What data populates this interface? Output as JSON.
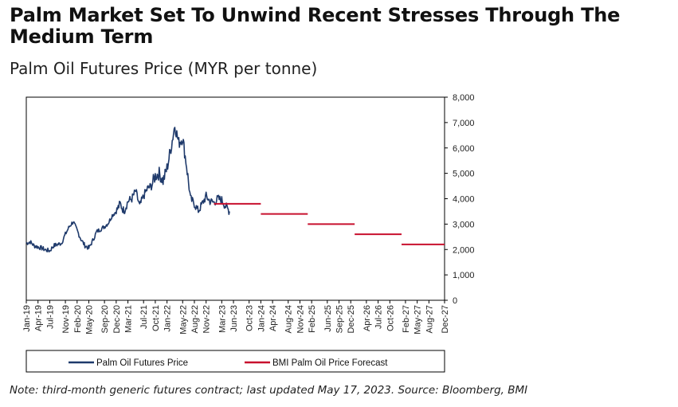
{
  "title": "Palm Market Set To Unwind Recent Stresses Through The Medium Term",
  "subtitle": "Palm Oil Futures Price (MYR per tonne)",
  "note": "Note: third-month generic futures contract; last updated May 17, 2023. Source: Bloomberg, BMI",
  "colors": {
    "futures": "#1f3a6b",
    "forecast": "#c8102e"
  },
  "chart_data": {
    "type": "line",
    "title": "Palm Oil Futures Price (MYR per tonne)",
    "xlabel": "",
    "ylabel": "MYR per tonne",
    "ylim": [
      0,
      8000
    ],
    "y_ticks": [
      "0",
      "1,000",
      "2,000",
      "3,000",
      "4,000",
      "5,000",
      "6,000",
      "7,000",
      "8,000"
    ],
    "x_start": "Jan-19",
    "x_end": "Dec-27",
    "x_ticks": [
      "Jan-19",
      "Apr-19",
      "Jul-19",
      "Nov-19",
      "Feb-20",
      "May-20",
      "Sep-20",
      "Dec-20",
      "Mar-21",
      "Jul-21",
      "Oct-21",
      "Jan-22",
      "May-22",
      "Aug-22",
      "Nov-22",
      "Mar-23",
      "Jun-23",
      "Oct-23",
      "Jan-24",
      "Apr-24",
      "Aug-24",
      "Nov-24",
      "Feb-25",
      "Jun-25",
      "Sep-25",
      "Dec-25",
      "Apr-26",
      "Jul-26",
      "Oct-26",
      "Feb-27",
      "May-27",
      "Aug-27",
      "Dec-27"
    ],
    "series": [
      {
        "name": "Palm Oil Futures Price",
        "style": "line",
        "points": [
          [
            "Jan-19",
            2250
          ],
          [
            "Feb-19",
            2300
          ],
          [
            "Mar-19",
            2150
          ],
          [
            "Apr-19",
            2100
          ],
          [
            "May-19",
            2050
          ],
          [
            "Jun-19",
            1980
          ],
          [
            "Jul-19",
            1950
          ],
          [
            "Aug-19",
            2150
          ],
          [
            "Sep-19",
            2200
          ],
          [
            "Oct-19",
            2250
          ],
          [
            "Nov-19",
            2600
          ],
          [
            "Dec-19",
            2900
          ],
          [
            "Jan-20",
            3100
          ],
          [
            "Feb-20",
            2750
          ],
          [
            "Mar-20",
            2400
          ],
          [
            "Apr-20",
            2150
          ],
          [
            "May-20",
            2050
          ],
          [
            "Jun-20",
            2350
          ],
          [
            "Jul-20",
            2700
          ],
          [
            "Aug-20",
            2800
          ],
          [
            "Sep-20",
            2900
          ],
          [
            "Oct-20",
            3050
          ],
          [
            "Nov-20",
            3350
          ],
          [
            "Dec-20",
            3500
          ],
          [
            "Jan-21",
            3800
          ],
          [
            "Feb-21",
            3500
          ],
          [
            "Mar-21",
            3900
          ],
          [
            "Apr-21",
            4000
          ],
          [
            "May-21",
            4300
          ],
          [
            "Jun-21",
            3700
          ],
          [
            "Jul-21",
            4100
          ],
          [
            "Aug-21",
            4400
          ],
          [
            "Sep-21",
            4500
          ],
          [
            "Oct-21",
            4900
          ],
          [
            "Nov-21",
            5000
          ],
          [
            "Dec-21",
            4700
          ],
          [
            "Jan-22",
            5200
          ],
          [
            "Feb-22",
            6000
          ],
          [
            "Mar-22",
            6900
          ],
          [
            "Apr-22",
            6200
          ],
          [
            "May-22",
            6400
          ],
          [
            "Jun-22",
            5300
          ],
          [
            "Jul-22",
            4000
          ],
          [
            "Aug-22",
            3800
          ],
          [
            "Sep-22",
            3500
          ],
          [
            "Oct-22",
            3800
          ],
          [
            "Nov-22",
            4100
          ],
          [
            "Dec-22",
            3900
          ],
          [
            "Jan-23",
            3850
          ],
          [
            "Feb-23",
            4000
          ],
          [
            "Mar-23",
            3950
          ],
          [
            "Apr-23",
            3700
          ],
          [
            "May-23",
            3500
          ]
        ]
      },
      {
        "name": "BMI Palm Oil Price Forecast",
        "style": "step",
        "segments": [
          {
            "start": "Jan-23",
            "end": "Dec-23",
            "value": 3800
          },
          {
            "start": "Jan-24",
            "end": "Dec-24",
            "value": 3400
          },
          {
            "start": "Jan-25",
            "end": "Dec-25",
            "value": 3000
          },
          {
            "start": "Jan-26",
            "end": "Dec-26",
            "value": 2600
          },
          {
            "start": "Jan-27",
            "end": "Dec-27",
            "value": 2200
          }
        ]
      }
    ],
    "legend": {
      "position": "bottom"
    }
  }
}
